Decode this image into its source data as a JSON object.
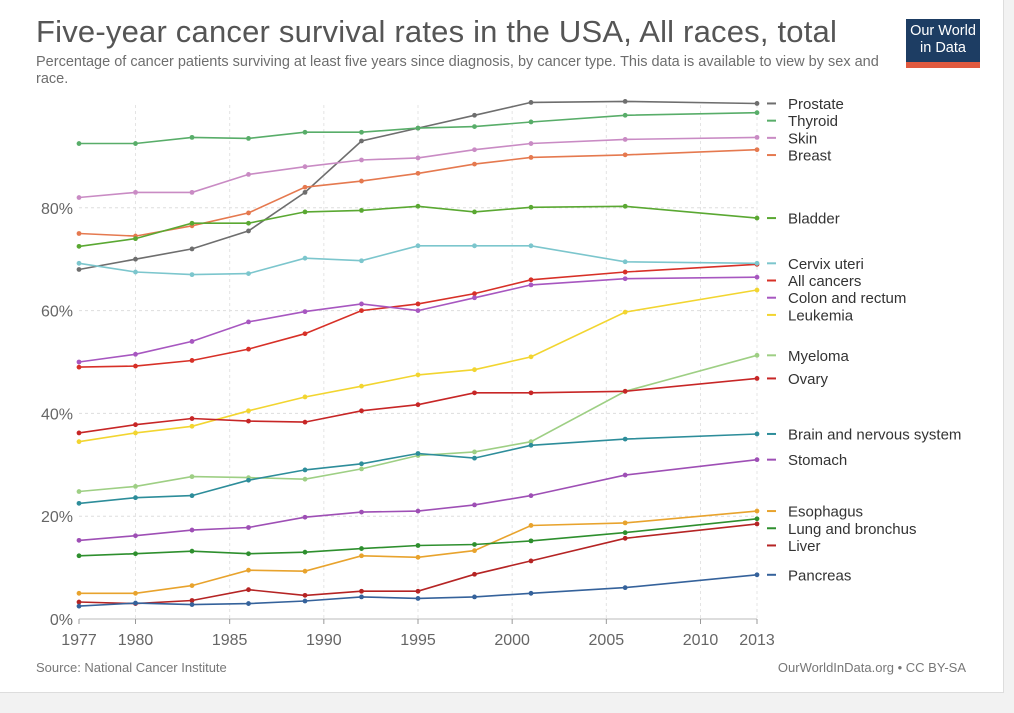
{
  "header": {
    "title": "Five-year cancer survival rates in the USA, All races, total",
    "subtitle": "Percentage of cancer patients surviving at least five years since diagnosis, by cancer type. This data is available to view by sex and race."
  },
  "logo": {
    "line1": "Our World",
    "line2": "in Data",
    "bg_color": "#1d3d63",
    "bar_color": "#e0593f"
  },
  "footer": {
    "source": "Source: National Cancer Institute",
    "license": "OurWorldInData.org • CC BY-SA"
  },
  "chart_data": {
    "type": "line",
    "title": "Five-year cancer survival rates in the USA, All races, total",
    "x": [
      1977,
      1980,
      1983,
      1986,
      1989,
      1992,
      1995,
      1998,
      2001,
      2006,
      2013
    ],
    "x_ticks": [
      1977,
      1980,
      1985,
      1990,
      1995,
      2000,
      2005,
      2010,
      2013
    ],
    "y_ticks": [
      "0%",
      "20%",
      "40%",
      "60%",
      "80%"
    ],
    "ylim": [
      0,
      100
    ],
    "xlim": [
      1977,
      2013
    ],
    "grid": true,
    "legend_placement": "right",
    "series": [
      {
        "name": "Prostate",
        "color": "#6e6e6e",
        "values": [
          68,
          70,
          72,
          75.5,
          83,
          93,
          95.5,
          98,
          100.5,
          100.7,
          100.3
        ]
      },
      {
        "name": "Thyroid",
        "color": "#58ad69",
        "values": [
          92.5,
          92.5,
          93.7,
          93.5,
          94.7,
          94.7,
          95.5,
          95.8,
          96.7,
          98,
          98.5
        ]
      },
      {
        "name": "Skin",
        "color": "#c98bc4",
        "values": [
          82,
          83,
          83,
          86.5,
          88,
          89.3,
          89.7,
          91.3,
          92.5,
          93.3,
          93.7
        ]
      },
      {
        "name": "Breast",
        "color": "#e5794f",
        "values": [
          75,
          74.5,
          76.5,
          79,
          84,
          85.2,
          86.7,
          88.5,
          89.8,
          90.3,
          91.3
        ]
      },
      {
        "name": "Bladder",
        "color": "#5aa832",
        "values": [
          72.5,
          74,
          77,
          77,
          79.2,
          79.5,
          80.3,
          79.2,
          80.1,
          80.3,
          78
        ]
      },
      {
        "name": "All cancers",
        "color": "#d73027",
        "values": [
          49,
          49.2,
          50.3,
          52.5,
          55.5,
          60,
          61.3,
          63.3,
          66,
          67.5,
          69
        ]
      },
      {
        "name": "Cervix uteri",
        "color": "#7cc6cd",
        "values": [
          69.2,
          67.5,
          67,
          67.2,
          70.2,
          69.7,
          72.6,
          72.6,
          72.6,
          69.5,
          69.2
        ]
      },
      {
        "name": "Colon and rectum",
        "color": "#a757c0",
        "values": [
          50,
          51.5,
          54,
          57.8,
          59.8,
          61.3,
          60,
          62.5,
          65,
          66.2,
          66.5
        ]
      },
      {
        "name": "Leukemia",
        "color": "#f2d530",
        "values": [
          34.5,
          36.2,
          37.5,
          40.5,
          43.2,
          45.3,
          47.5,
          48.5,
          51,
          59.7,
          64
        ]
      },
      {
        "name": "Myeloma",
        "color": "#9ecf84",
        "values": [
          24.8,
          25.8,
          27.7,
          27.5,
          27.2,
          29.2,
          31.8,
          32.5,
          34.5,
          44.3,
          51.3
        ]
      },
      {
        "name": "Ovary",
        "color": "#c72626",
        "values": [
          36.2,
          37.8,
          39,
          38.5,
          38.3,
          40.5,
          41.7,
          44,
          44,
          44.3,
          46.8
        ]
      },
      {
        "name": "Brain and nervous system",
        "color": "#2d8d9a",
        "values": [
          22.5,
          23.6,
          24,
          27,
          29,
          30.2,
          32.2,
          31.3,
          33.8,
          35,
          36
        ]
      },
      {
        "name": "Stomach",
        "color": "#9e4fb5",
        "values": [
          15.3,
          16.2,
          17.3,
          17.8,
          19.8,
          20.8,
          21,
          22.2,
          24,
          28,
          31
        ]
      },
      {
        "name": "Esophagus",
        "color": "#e8a32d",
        "values": [
          5,
          5,
          6.5,
          9.5,
          9.3,
          12.3,
          12,
          13.3,
          18.2,
          18.7,
          21
        ]
      },
      {
        "name": "Lung and bronchus",
        "color": "#2e8f2e",
        "values": [
          12.3,
          12.7,
          13.2,
          12.7,
          13,
          13.7,
          14.3,
          14.5,
          15.2,
          16.8,
          19.5
        ]
      },
      {
        "name": "Liver",
        "color": "#b52424",
        "values": [
          3.3,
          3,
          3.6,
          5.7,
          4.6,
          5.4,
          5.4,
          8.7,
          11.3,
          15.7,
          18.5
        ]
      },
      {
        "name": "Pancreas",
        "color": "#35629b",
        "values": [
          2.5,
          3.1,
          2.8,
          3,
          3.5,
          4.3,
          4,
          4.3,
          5,
          6.1,
          8.6
        ]
      }
    ]
  }
}
